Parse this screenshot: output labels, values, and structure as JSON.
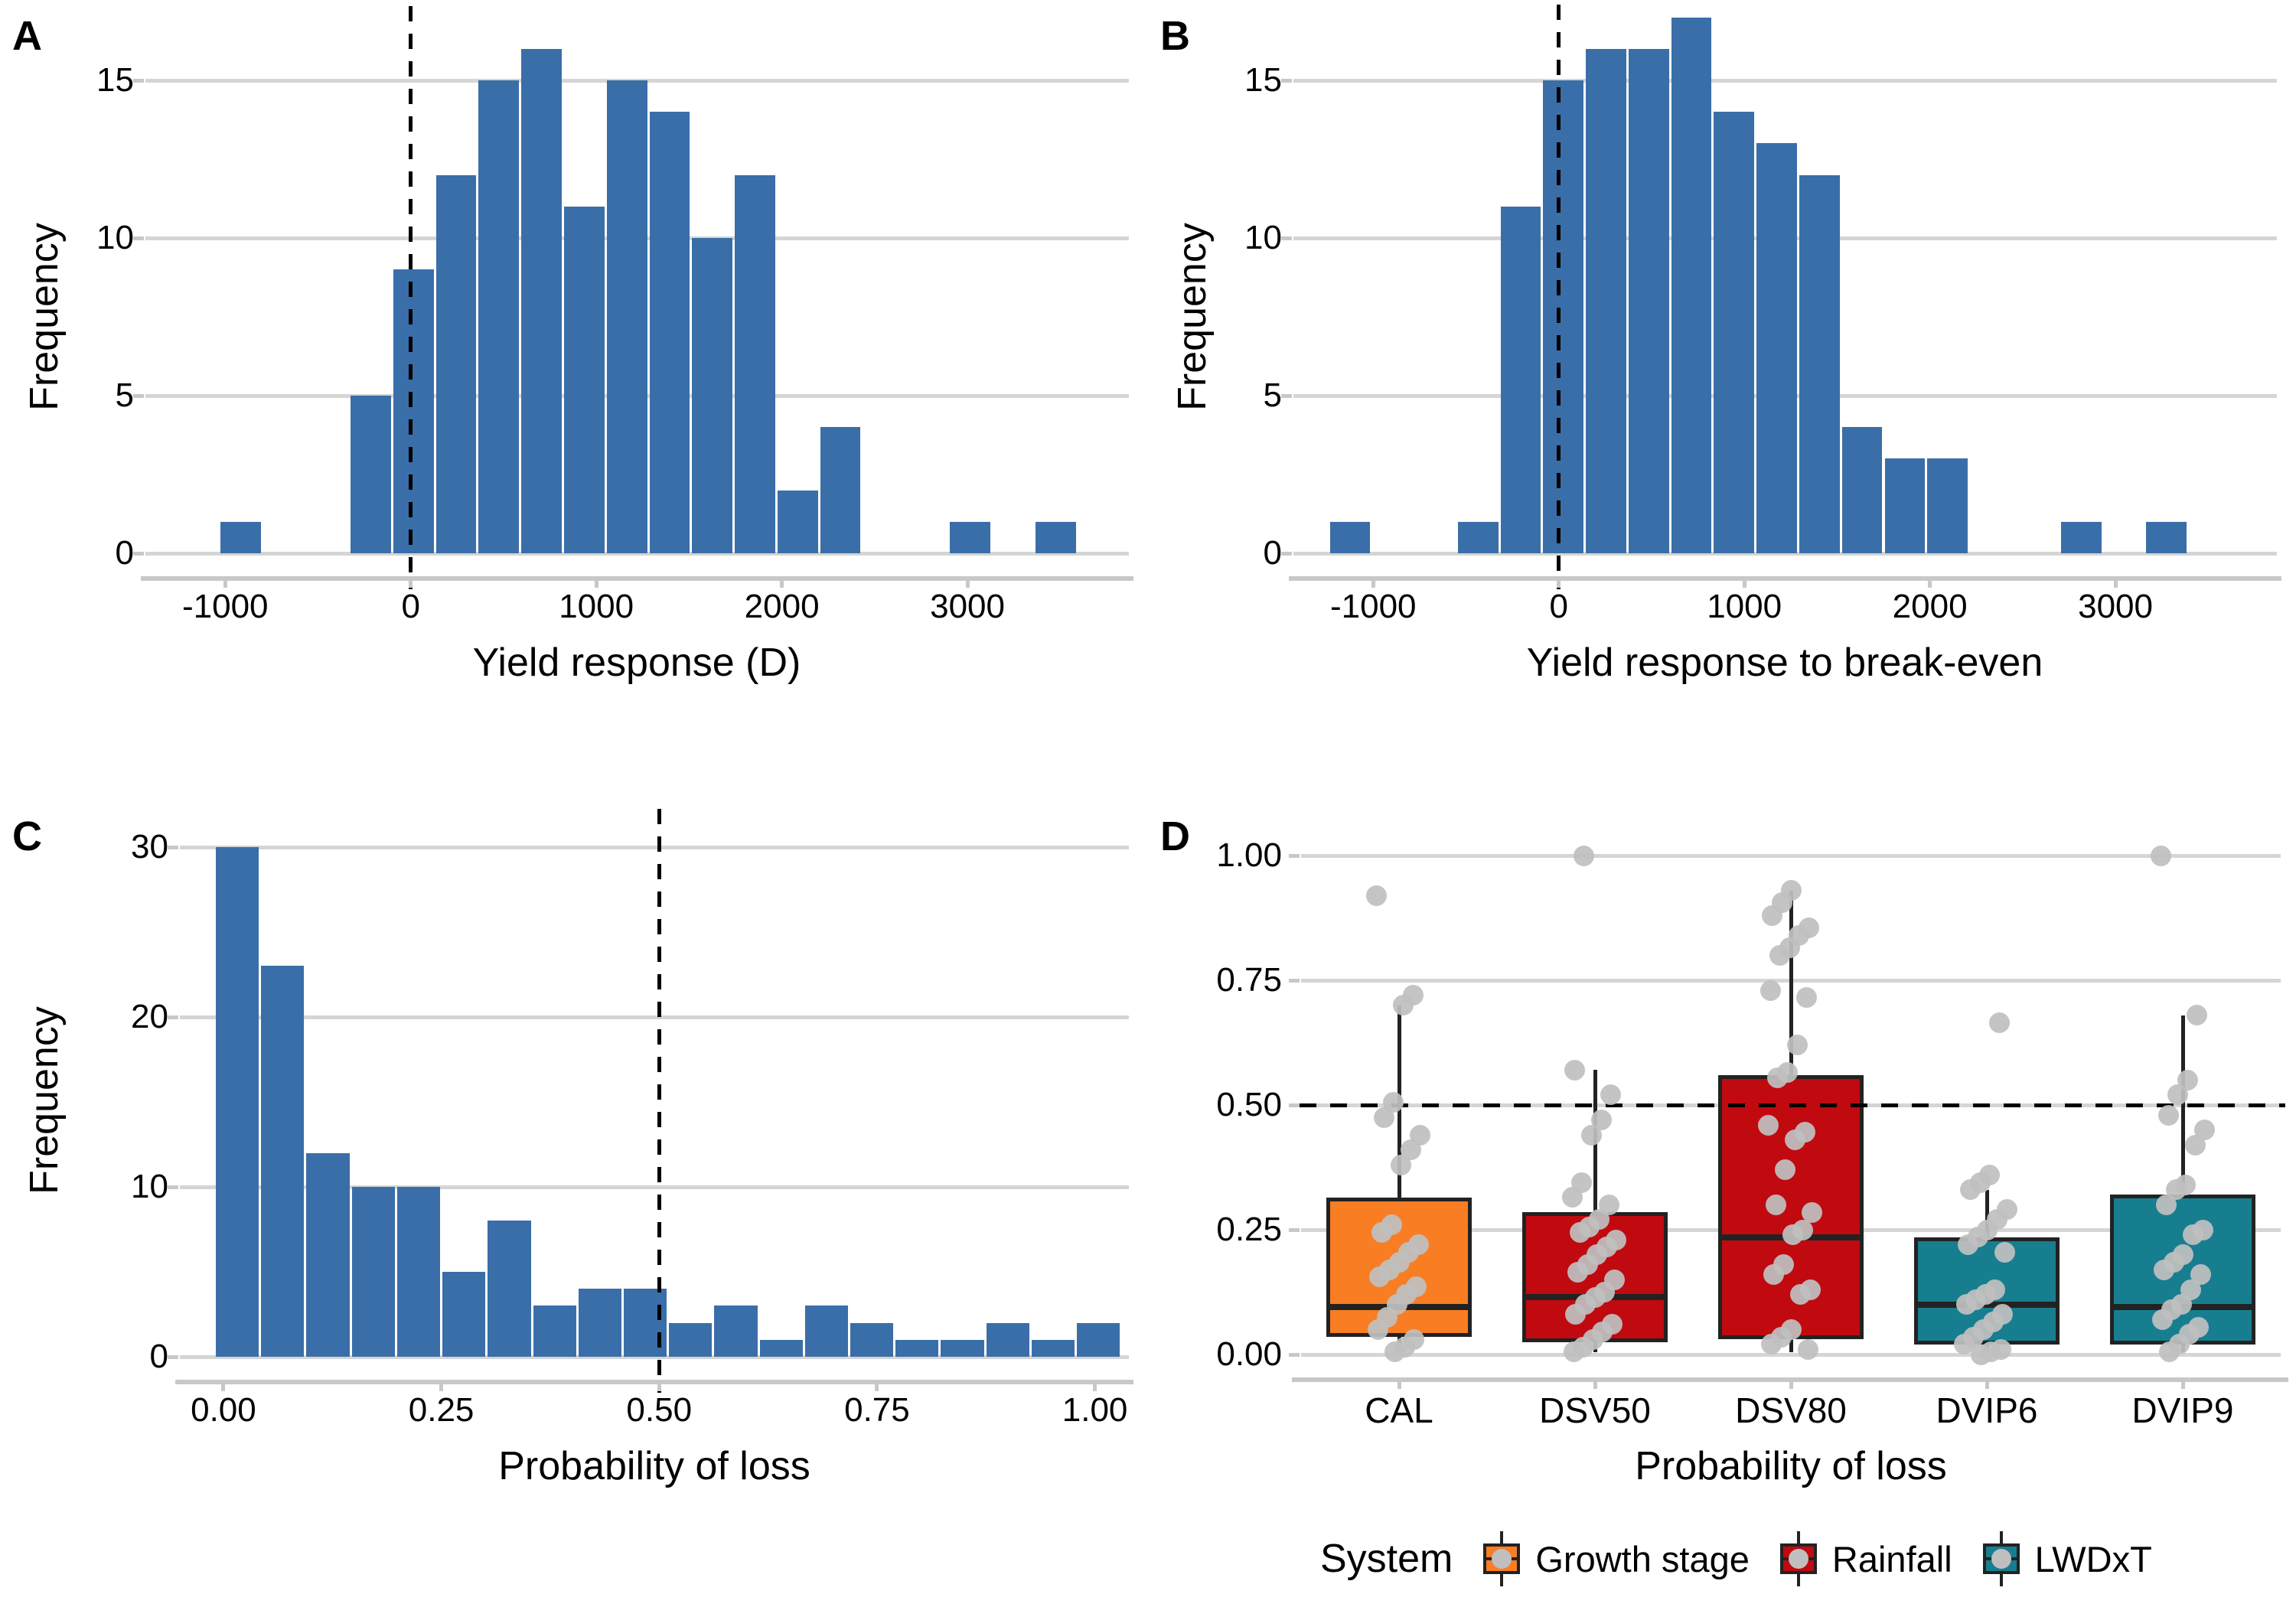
{
  "figure": {
    "background": "#ffffff"
  },
  "panels": {
    "a": {
      "letter": "A",
      "xlabel": "Yield response (D)",
      "ylabel": "Frequency"
    },
    "b": {
      "letter": "B",
      "xlabel": "Yield response to break-even",
      "ylabel": "Frequency"
    },
    "c": {
      "letter": "C",
      "xlabel": "Probability of loss",
      "ylabel": "Frequency"
    },
    "d": {
      "letter": "D",
      "xlabel": "Probability of loss"
    }
  },
  "legend": {
    "title": "System",
    "items": [
      {
        "label": "Growth stage",
        "color": "#F87D23"
      },
      {
        "label": "Rainfall",
        "color": "#C00A10"
      },
      {
        "label": "LWDxT",
        "color": "#177E8F"
      }
    ]
  },
  "colors": {
    "histogram_bar": "#3A6EA8",
    "gridline": "#d5d5d5",
    "axis": "#c8c8c8",
    "box_border": "#222222",
    "jitter_point": "#bfbfbf",
    "dashed_line": "#000000"
  },
  "chart_data": [
    {
      "id": "A",
      "type": "bar",
      "subtype": "histogram",
      "xlabel": "Yield response (D)",
      "ylabel": "Frequency",
      "xticks": [
        -1000,
        0,
        1000,
        2000,
        3000
      ],
      "xtick_labels": [
        "-1000",
        "0",
        "1000",
        "2000",
        "3000"
      ],
      "yticks": [
        0,
        5,
        10,
        15
      ],
      "ytick_labels": [
        "0",
        "5",
        "10",
        "15"
      ],
      "xlim": [
        -1430,
        3870
      ],
      "ylim": [
        0,
        16.2
      ],
      "vline": 0,
      "grid": "horizontal",
      "bars": [
        [
          -1030,
          -800,
          1
        ],
        [
          -330,
          -100,
          5
        ],
        [
          -100,
          130,
          9
        ],
        [
          130,
          360,
          12
        ],
        [
          360,
          590,
          15
        ],
        [
          590,
          820,
          16
        ],
        [
          820,
          1050,
          11
        ],
        [
          1050,
          1280,
          15
        ],
        [
          1280,
          1510,
          14
        ],
        [
          1510,
          1740,
          10
        ],
        [
          1740,
          1970,
          12
        ],
        [
          1970,
          2200,
          2
        ],
        [
          2200,
          2430,
          4
        ],
        [
          2900,
          3130,
          1
        ],
        [
          3360,
          3590,
          1
        ]
      ]
    },
    {
      "id": "B",
      "type": "bar",
      "subtype": "histogram",
      "xlabel": "Yield response to break-even",
      "ylabel": "Frequency",
      "xticks": [
        -1000,
        0,
        1000,
        2000,
        3000
      ],
      "xtick_labels": [
        "-1000",
        "0",
        "1000",
        "2000",
        "3000"
      ],
      "yticks": [
        0,
        5,
        10,
        15
      ],
      "ytick_labels": [
        "0",
        "5",
        "10",
        "15"
      ],
      "xlim": [
        -1430,
        3870
      ],
      "ylim": [
        0,
        17.1
      ],
      "vline": 0,
      "grid": "horizontal",
      "bars": [
        [
          -1240,
          -1010,
          1
        ],
        [
          -550,
          -320,
          1
        ],
        [
          -320,
          -90,
          11
        ],
        [
          -90,
          140,
          15
        ],
        [
          140,
          370,
          16
        ],
        [
          370,
          600,
          16
        ],
        [
          600,
          830,
          17
        ],
        [
          830,
          1060,
          14
        ],
        [
          1060,
          1290,
          13
        ],
        [
          1290,
          1520,
          12
        ],
        [
          1520,
          1750,
          4
        ],
        [
          1750,
          1980,
          3
        ],
        [
          1980,
          2210,
          3
        ],
        [
          2700,
          2930,
          1
        ],
        [
          3160,
          3390,
          1
        ]
      ]
    },
    {
      "id": "C",
      "type": "bar",
      "subtype": "histogram",
      "xlabel": "Probability of loss",
      "ylabel": "Frequency",
      "xticks": [
        0,
        0.25,
        0.5,
        0.75,
        1.0
      ],
      "xtick_labels": [
        "0.00",
        "0.25",
        "0.50",
        "0.75",
        "1.00"
      ],
      "yticks": [
        0,
        10,
        20,
        30
      ],
      "ytick_labels": [
        "0",
        "10",
        "20",
        "30"
      ],
      "xlim": [
        -0.05,
        1.039
      ],
      "ylim": [
        0,
        30.1
      ],
      "vline": 0.5,
      "grid": "horizontal",
      "bars": [
        [
          -0.01,
          0.042,
          30
        ],
        [
          0.042,
          0.094,
          23
        ],
        [
          0.094,
          0.146,
          12
        ],
        [
          0.146,
          0.198,
          10
        ],
        [
          0.198,
          0.25,
          10
        ],
        [
          0.25,
          0.302,
          5
        ],
        [
          0.302,
          0.354,
          8
        ],
        [
          0.354,
          0.406,
          3
        ],
        [
          0.406,
          0.458,
          4
        ],
        [
          0.458,
          0.51,
          4
        ],
        [
          0.51,
          0.562,
          2
        ],
        [
          0.562,
          0.614,
          3
        ],
        [
          0.614,
          0.666,
          1
        ],
        [
          0.666,
          0.718,
          3
        ],
        [
          0.718,
          0.77,
          2
        ],
        [
          0.77,
          0.822,
          1
        ],
        [
          0.822,
          0.874,
          1
        ],
        [
          0.874,
          0.926,
          2
        ],
        [
          0.926,
          0.978,
          1
        ],
        [
          0.978,
          1.03,
          2
        ]
      ]
    },
    {
      "id": "D",
      "type": "boxplot",
      "xlabel": "Probability of loss",
      "categories": [
        "CAL",
        "DSV50",
        "DSV80",
        "DVIP6",
        "DVIP9"
      ],
      "yticks": [
        0,
        0.25,
        0.5,
        0.75,
        1.0
      ],
      "ytick_labels": [
        "0.00",
        "0.25",
        "0.50",
        "0.75",
        "1.00"
      ],
      "ylim": [
        -0.04,
        1.04
      ],
      "hline": 0.5,
      "grid": "horizontal",
      "groups": [
        {
          "label": "CAL",
          "system": "Growth stage",
          "color": "#F87D23",
          "q1": 0.035,
          "median": 0.095,
          "q3": 0.315,
          "whisker_low": 0.005,
          "whisker_high": 0.7,
          "points": [
            0.92,
            0.72,
            0.7,
            0.505,
            0.475,
            0.44,
            0.41,
            0.38,
            0.26,
            0.245,
            0.22,
            0.205,
            0.185,
            0.17,
            0.155,
            0.135,
            0.12,
            0.1,
            0.075,
            0.05,
            0.03,
            0.015,
            0.005
          ]
        },
        {
          "label": "DSV50",
          "system": "Rainfall",
          "color": "#C00A10",
          "q1": 0.025,
          "median": 0.115,
          "q3": 0.285,
          "whisker_low": 0.005,
          "whisker_high": 0.57,
          "points": [
            1.0,
            0.57,
            0.52,
            0.47,
            0.44,
            0.345,
            0.315,
            0.3,
            0.27,
            0.255,
            0.245,
            0.23,
            0.215,
            0.2,
            0.18,
            0.165,
            0.15,
            0.125,
            0.115,
            0.1,
            0.08,
            0.06,
            0.045,
            0.03,
            0.015,
            0.005
          ]
        },
        {
          "label": "DSV80",
          "system": "Rainfall",
          "color": "#C00A10",
          "q1": 0.03,
          "median": 0.235,
          "q3": 0.56,
          "whisker_low": 0.005,
          "whisker_high": 0.93,
          "points": [
            0.93,
            0.905,
            0.88,
            0.855,
            0.84,
            0.815,
            0.8,
            0.73,
            0.715,
            0.62,
            0.565,
            0.555,
            0.46,
            0.445,
            0.43,
            0.37,
            0.3,
            0.285,
            0.25,
            0.24,
            0.18,
            0.16,
            0.13,
            0.12,
            0.05,
            0.035,
            0.02,
            0.01
          ]
        },
        {
          "label": "DVIP6",
          "system": "LWDxT",
          "color": "#177E8F",
          "q1": 0.02,
          "median": 0.1,
          "q3": 0.235,
          "whisker_low": 0.005,
          "whisker_high": 0.33,
          "points": [
            0.665,
            0.36,
            0.345,
            0.33,
            0.29,
            0.27,
            0.25,
            0.235,
            0.22,
            0.205,
            0.13,
            0.12,
            0.11,
            0.1,
            0.08,
            0.065,
            0.05,
            0.035,
            0.02,
            0.01,
            0.005,
            0.0
          ]
        },
        {
          "label": "DVIP9",
          "system": "LWDxT",
          "color": "#177E8F",
          "q1": 0.02,
          "median": 0.095,
          "q3": 0.32,
          "whisker_low": 0.005,
          "whisker_high": 0.68,
          "points": [
            1.0,
            0.68,
            0.55,
            0.52,
            0.48,
            0.45,
            0.42,
            0.34,
            0.33,
            0.3,
            0.25,
            0.24,
            0.2,
            0.185,
            0.17,
            0.16,
            0.13,
            0.1,
            0.09,
            0.07,
            0.055,
            0.04,
            0.02,
            0.005
          ]
        }
      ]
    }
  ]
}
